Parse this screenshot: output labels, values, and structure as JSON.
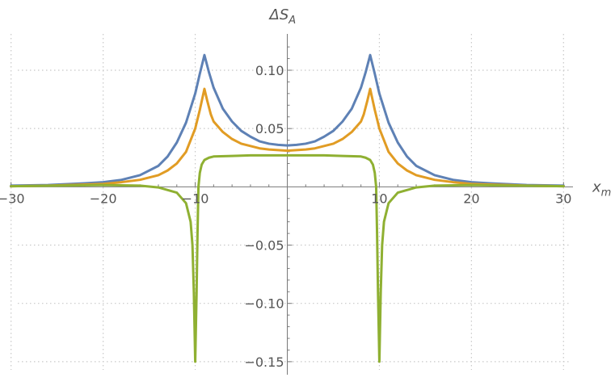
{
  "chart_data": {
    "type": "line",
    "xlabel": "x",
    "xlabel_sub": "m",
    "ylabel": "ΔS",
    "ylabel_sub": "A",
    "xlim": [
      -30.5,
      30.5
    ],
    "ylim": [
      -0.157,
      0.127
    ],
    "x_ticks": [
      -30,
      -20,
      -10,
      10,
      20,
      30
    ],
    "x_tick_labels": [
      "−30",
      "−20",
      "−10",
      "10",
      "20",
      "30"
    ],
    "y_ticks": [
      -0.15,
      -0.1,
      -0.05,
      0.05,
      0.1
    ],
    "y_tick_labels": [
      "−0.15",
      "−0.10",
      "−0.05",
      "0.05",
      "0.10"
    ],
    "x_minor_step": 2,
    "y_minor_step": 0.01,
    "grid": true,
    "series": [
      {
        "color": "#5e81b5",
        "points": [
          [
            -30,
            0.001
          ],
          [
            -26,
            0.0015
          ],
          [
            -22,
            0.003
          ],
          [
            -20,
            0.004
          ],
          [
            -18,
            0.006
          ],
          [
            -16,
            0.01
          ],
          [
            -14,
            0.018
          ],
          [
            -13,
            0.026
          ],
          [
            -12,
            0.038
          ],
          [
            -11,
            0.055
          ],
          [
            -10,
            0.08
          ],
          [
            -9.5,
            0.097
          ],
          [
            -9,
            0.113
          ],
          [
            -8.5,
            0.098
          ],
          [
            -8,
            0.085
          ],
          [
            -7,
            0.067
          ],
          [
            -6,
            0.056
          ],
          [
            -5,
            0.048
          ],
          [
            -4,
            0.043
          ],
          [
            -3,
            0.039
          ],
          [
            -2,
            0.037
          ],
          [
            -1,
            0.036
          ],
          [
            0,
            0.0355
          ],
          [
            1,
            0.036
          ],
          [
            2,
            0.037
          ],
          [
            3,
            0.039
          ],
          [
            4,
            0.043
          ],
          [
            5,
            0.048
          ],
          [
            6,
            0.056
          ],
          [
            7,
            0.067
          ],
          [
            8,
            0.085
          ],
          [
            8.5,
            0.098
          ],
          [
            9,
            0.113
          ],
          [
            9.5,
            0.097
          ],
          [
            10,
            0.08
          ],
          [
            11,
            0.055
          ],
          [
            12,
            0.038
          ],
          [
            13,
            0.026
          ],
          [
            14,
            0.018
          ],
          [
            16,
            0.01
          ],
          [
            18,
            0.006
          ],
          [
            20,
            0.004
          ],
          [
            22,
            0.003
          ],
          [
            26,
            0.0015
          ],
          [
            30,
            0.001
          ]
        ]
      },
      {
        "color": "#e19c24",
        "points": [
          [
            -30,
            0.0005
          ],
          [
            -26,
            0.001
          ],
          [
            -22,
            0.002
          ],
          [
            -20,
            0.0025
          ],
          [
            -18,
            0.004
          ],
          [
            -16,
            0.006
          ],
          [
            -14,
            0.01
          ],
          [
            -13,
            0.014
          ],
          [
            -12,
            0.02
          ],
          [
            -11,
            0.03
          ],
          [
            -10,
            0.05
          ],
          [
            -9.5,
            0.066
          ],
          [
            -9,
            0.084
          ],
          [
            -8.7,
            0.074
          ],
          [
            -8.3,
            0.062
          ],
          [
            -8,
            0.056
          ],
          [
            -7,
            0.047
          ],
          [
            -6,
            0.041
          ],
          [
            -5,
            0.037
          ],
          [
            -4,
            0.035
          ],
          [
            -3,
            0.033
          ],
          [
            -2,
            0.032
          ],
          [
            -1,
            0.0315
          ],
          [
            0,
            0.031
          ],
          [
            1,
            0.0315
          ],
          [
            2,
            0.032
          ],
          [
            3,
            0.033
          ],
          [
            4,
            0.035
          ],
          [
            5,
            0.037
          ],
          [
            6,
            0.041
          ],
          [
            7,
            0.047
          ],
          [
            8,
            0.056
          ],
          [
            8.3,
            0.062
          ],
          [
            8.7,
            0.074
          ],
          [
            9,
            0.084
          ],
          [
            9.5,
            0.066
          ],
          [
            10,
            0.05
          ],
          [
            11,
            0.03
          ],
          [
            12,
            0.02
          ],
          [
            13,
            0.014
          ],
          [
            14,
            0.01
          ],
          [
            16,
            0.006
          ],
          [
            18,
            0.004
          ],
          [
            20,
            0.0025
          ],
          [
            22,
            0.002
          ],
          [
            26,
            0.001
          ],
          [
            30,
            0.0005
          ]
        ]
      },
      {
        "color": "#8fb032",
        "points": [
          [
            -30,
            0.0005
          ],
          [
            -25,
            0.001
          ],
          [
            -20,
            0.0015
          ],
          [
            -16,
            0.001
          ],
          [
            -14,
            -0.0005
          ],
          [
            -12,
            -0.005
          ],
          [
            -11,
            -0.014
          ],
          [
            -10.5,
            -0.03
          ],
          [
            -10.3,
            -0.05
          ],
          [
            -10.15,
            -0.09
          ],
          [
            -10.05,
            -0.13
          ],
          [
            -10,
            -0.15
          ],
          [
            -9.95,
            -0.13
          ],
          [
            -9.85,
            -0.09
          ],
          [
            -9.75,
            -0.04
          ],
          [
            -9.65,
            0.0
          ],
          [
            -9.5,
            0.012
          ],
          [
            -9.3,
            0.019
          ],
          [
            -9,
            0.023
          ],
          [
            -8.5,
            0.025
          ],
          [
            -8,
            0.026
          ],
          [
            -6,
            0.0265
          ],
          [
            -4,
            0.027
          ],
          [
            -2,
            0.027
          ],
          [
            0,
            0.027
          ],
          [
            2,
            0.027
          ],
          [
            4,
            0.027
          ],
          [
            6,
            0.0265
          ],
          [
            8,
            0.026
          ],
          [
            8.5,
            0.025
          ],
          [
            9,
            0.023
          ],
          [
            9.3,
            0.019
          ],
          [
            9.5,
            0.012
          ],
          [
            9.65,
            0.0
          ],
          [
            9.75,
            -0.04
          ],
          [
            9.85,
            -0.09
          ],
          [
            9.95,
            -0.13
          ],
          [
            10,
            -0.15
          ],
          [
            10.05,
            -0.13
          ],
          [
            10.15,
            -0.09
          ],
          [
            10.3,
            -0.05
          ],
          [
            10.5,
            -0.03
          ],
          [
            11,
            -0.014
          ],
          [
            12,
            -0.005
          ],
          [
            14,
            -0.0005
          ],
          [
            16,
            0.001
          ],
          [
            20,
            0.0015
          ],
          [
            25,
            0.001
          ],
          [
            30,
            0.0005
          ]
        ]
      }
    ]
  }
}
